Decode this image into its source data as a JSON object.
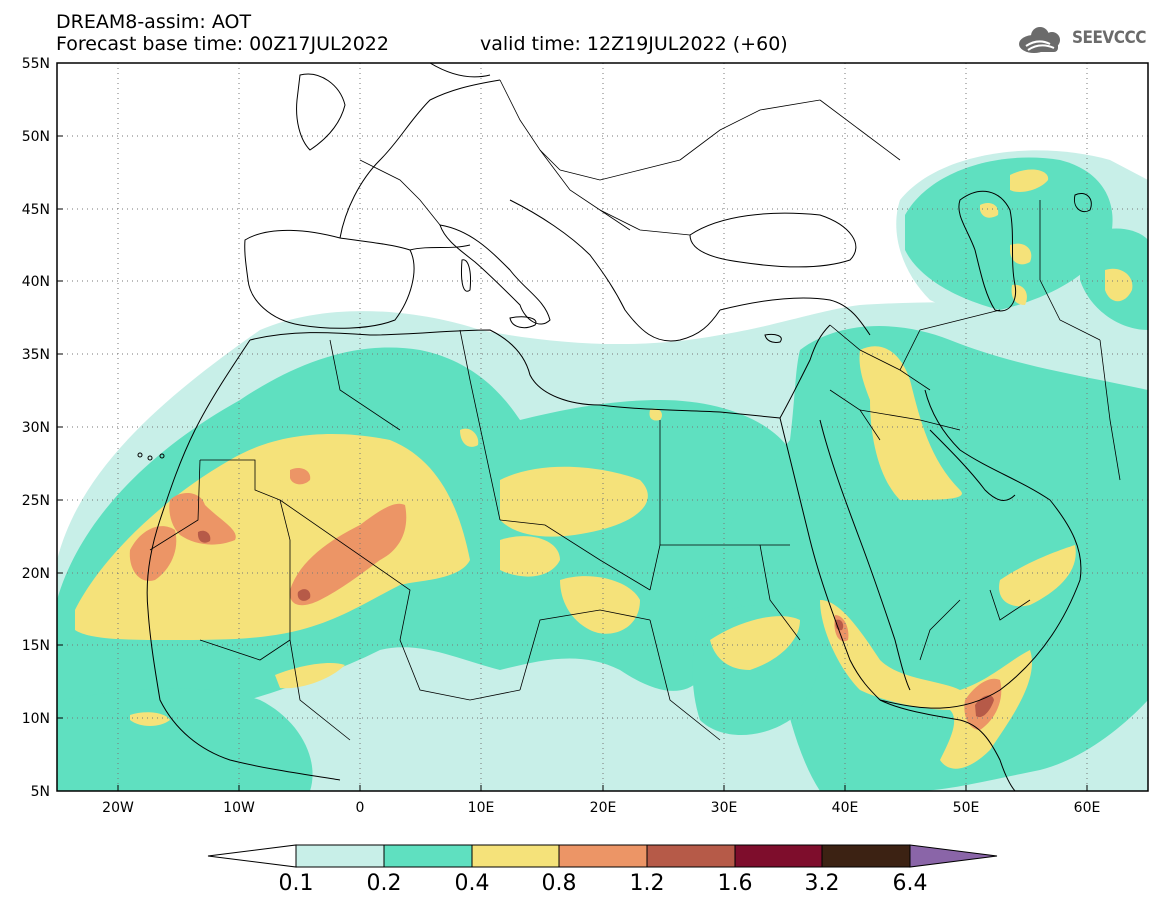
{
  "header": {
    "title": "DREAM8-assim: AOT",
    "base_time": "Forecast base time: 00Z17JUL2022",
    "valid_time": "valid time: 12Z19JUL2022 (+60)"
  },
  "logo": {
    "text": "SEEVCCC",
    "icon": "cloud-icon"
  },
  "map": {
    "lat_labels": [
      "55N",
      "50N",
      "45N",
      "40N",
      "35N",
      "30N",
      "25N",
      "20N",
      "15N",
      "10N",
      "5N"
    ],
    "lon_labels": [
      "20W",
      "10W",
      "0",
      "10E",
      "20E",
      "30E",
      "40E",
      "50E",
      "60E"
    ],
    "lat_range": [
      5,
      55
    ],
    "lon_range": [
      -25,
      65
    ],
    "grid": "dotted"
  },
  "colorbar": {
    "labels": [
      "0.1",
      "0.2",
      "0.4",
      "0.8",
      "1.2",
      "1.6",
      "3.2",
      "6.4"
    ],
    "colors": [
      "#c8efe8",
      "#5fe0c0",
      "#f5e27a",
      "#ec9566",
      "#b65a48",
      "#7e0d2c",
      "#3c2213",
      "#8a65a8"
    ]
  }
}
